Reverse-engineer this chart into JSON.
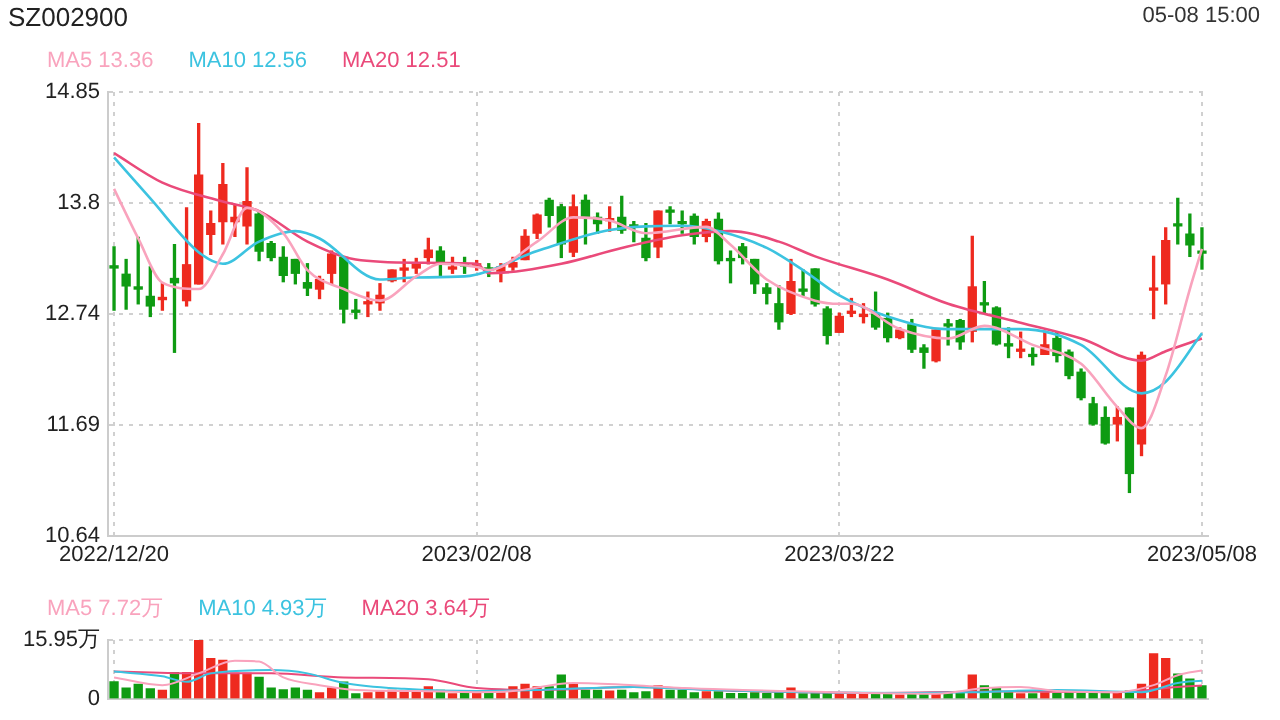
{
  "chart_data": [
    {
      "type": "candlestick",
      "title": "SZ002900",
      "annotations": [
        "05-08 15:00"
      ],
      "categories": [
        "2022/12/20",
        null,
        null,
        null,
        null,
        null,
        null,
        null,
        null,
        null,
        null,
        null,
        null,
        null,
        null,
        null,
        null,
        null,
        null,
        null,
        null,
        null,
        null,
        null,
        null,
        null,
        null,
        null,
        null,
        null,
        "2023/02/08",
        null,
        null,
        null,
        null,
        null,
        null,
        null,
        null,
        null,
        null,
        null,
        null,
        null,
        null,
        null,
        null,
        null,
        null,
        null,
        null,
        null,
        null,
        null,
        null,
        null,
        null,
        null,
        null,
        null,
        "2023/03/22",
        null,
        null,
        null,
        null,
        null,
        null,
        null,
        null,
        null,
        null,
        null,
        null,
        null,
        null,
        null,
        null,
        null,
        null,
        null,
        null,
        null,
        null,
        null,
        null,
        null,
        null,
        null,
        null,
        null,
        "2023/05/08"
      ],
      "ohlc": [
        [
          13.2,
          13.38,
          12.78,
          13.18
        ],
        [
          13.12,
          13.26,
          12.79,
          13.01
        ],
        [
          13.0,
          13.47,
          12.84,
          12.98
        ],
        [
          12.91,
          13.19,
          12.72,
          12.82
        ],
        [
          12.88,
          13.03,
          12.78,
          12.9
        ],
        [
          13.08,
          13.4,
          12.38,
          13.04
        ],
        [
          12.87,
          13.75,
          12.82,
          13.21
        ],
        [
          13.03,
          14.55,
          13.03,
          14.06
        ],
        [
          13.5,
          13.72,
          13.31,
          13.6
        ],
        [
          13.62,
          14.17,
          13.41,
          13.97
        ],
        [
          13.62,
          13.78,
          13.48,
          13.66
        ],
        [
          13.58,
          14.13,
          13.41,
          13.81
        ],
        [
          13.69,
          13.72,
          13.25,
          13.34
        ],
        [
          13.41,
          13.43,
          13.25,
          13.28
        ],
        [
          13.28,
          13.38,
          13.05,
          13.11
        ],
        [
          13.26,
          13.26,
          13.03,
          13.13
        ],
        [
          13.04,
          13.22,
          12.92,
          12.99
        ],
        [
          12.98,
          13.1,
          12.89,
          13.07
        ],
        [
          13.13,
          13.34,
          13.03,
          13.31
        ],
        [
          13.28,
          13.28,
          12.66,
          12.79
        ],
        [
          12.77,
          12.88,
          12.7,
          12.76
        ],
        [
          12.84,
          12.95,
          12.72,
          12.85
        ],
        [
          12.85,
          13.03,
          12.78,
          12.92
        ],
        [
          13.06,
          13.16,
          13.05,
          13.16
        ],
        [
          13.16,
          13.26,
          13.05,
          13.17
        ],
        [
          13.18,
          13.27,
          13.13,
          13.23
        ],
        [
          13.28,
          13.46,
          13.22,
          13.35
        ],
        [
          13.34,
          13.38,
          13.11,
          13.22
        ],
        [
          13.17,
          13.28,
          13.13,
          13.18
        ],
        [
          13.21,
          13.28,
          13.13,
          13.2
        ],
        [
          13.2,
          13.25,
          13.16,
          13.21
        ],
        [
          13.18,
          13.22,
          13.1,
          13.16
        ],
        [
          13.15,
          13.22,
          13.05,
          13.19
        ],
        [
          13.19,
          13.28,
          13.16,
          13.23
        ],
        [
          13.26,
          13.54,
          13.26,
          13.48
        ],
        [
          13.51,
          13.69,
          13.46,
          13.68
        ],
        [
          13.82,
          13.84,
          13.57,
          13.68
        ],
        [
          13.76,
          13.78,
          13.28,
          13.41
        ],
        [
          13.33,
          13.87,
          13.29,
          13.76
        ],
        [
          13.82,
          13.87,
          13.41,
          13.66
        ],
        [
          13.66,
          13.7,
          13.51,
          13.6
        ],
        [
          13.63,
          13.76,
          13.53,
          13.64
        ],
        [
          13.66,
          13.86,
          13.51,
          13.54
        ],
        [
          13.58,
          13.62,
          13.43,
          13.57
        ],
        [
          13.46,
          13.6,
          13.25,
          13.28
        ],
        [
          13.38,
          13.72,
          13.28,
          13.72
        ],
        [
          13.72,
          13.76,
          13.6,
          13.71
        ],
        [
          13.61,
          13.72,
          13.51,
          13.6
        ],
        [
          13.67,
          13.69,
          13.41,
          13.48
        ],
        [
          13.48,
          13.64,
          13.43,
          13.62
        ],
        [
          13.64,
          13.7,
          13.22,
          13.25
        ],
        [
          13.26,
          13.34,
          13.04,
          13.25
        ],
        [
          13.38,
          13.41,
          13.22,
          13.28
        ],
        [
          13.26,
          13.26,
          12.94,
          13.03
        ],
        [
          12.99,
          13.03,
          12.84,
          12.94
        ],
        [
          12.84,
          13.01,
          12.6,
          12.67
        ],
        [
          12.75,
          13.26,
          12.74,
          13.05
        ],
        [
          12.97,
          13.16,
          12.92,
          12.96
        ],
        [
          13.17,
          13.17,
          12.82,
          12.84
        ],
        [
          12.79,
          12.81,
          12.46,
          12.54
        ],
        [
          12.57,
          12.75,
          12.57,
          12.72
        ],
        [
          12.75,
          12.89,
          12.72,
          12.76
        ],
        [
          12.72,
          12.84,
          12.66,
          12.73
        ],
        [
          12.74,
          12.95,
          12.6,
          12.62
        ],
        [
          12.7,
          12.75,
          12.48,
          12.52
        ],
        [
          12.52,
          12.61,
          12.51,
          12.59
        ],
        [
          12.64,
          12.69,
          12.38,
          12.41
        ],
        [
          12.42,
          12.45,
          12.23,
          12.38
        ],
        [
          12.3,
          12.59,
          12.29,
          12.59
        ],
        [
          12.64,
          12.69,
          12.45,
          12.63
        ],
        [
          12.68,
          12.69,
          12.41,
          12.48
        ],
        [
          12.58,
          13.48,
          12.48,
          13.0
        ],
        [
          12.84,
          13.05,
          12.75,
          12.83
        ],
        [
          12.8,
          12.81,
          12.45,
          12.46
        ],
        [
          12.46,
          12.61,
          12.33,
          12.44
        ],
        [
          12.39,
          12.57,
          12.33,
          12.4
        ],
        [
          12.35,
          12.42,
          12.26,
          12.34
        ],
        [
          12.36,
          12.58,
          12.36,
          12.45
        ],
        [
          12.51,
          12.57,
          12.29,
          12.35
        ],
        [
          12.38,
          12.4,
          12.13,
          12.16
        ],
        [
          12.19,
          12.22,
          11.93,
          11.95
        ],
        [
          11.89,
          11.95,
          11.69,
          11.7
        ],
        [
          11.76,
          11.86,
          11.51,
          11.52
        ],
        [
          11.7,
          11.86,
          11.54,
          11.76
        ],
        [
          11.85,
          11.85,
          11.05,
          11.23
        ],
        [
          11.51,
          12.38,
          11.4,
          12.35
        ],
        [
          12.97,
          13.29,
          12.7,
          12.98
        ],
        [
          13.03,
          13.56,
          12.84,
          13.44
        ],
        [
          13.59,
          13.84,
          13.41,
          13.58
        ],
        [
          13.5,
          13.69,
          13.29,
          13.4
        ],
        [
          13.33,
          13.56,
          13.17,
          13.32
        ]
      ],
      "colors": [
        "#0e9b12",
        "#0e9b12",
        "#0e9b12",
        "#0e9b12",
        "#ee2a1f",
        "#0e9b12",
        "#ee2a1f",
        "#ee2a1f",
        "#ee2a1f",
        "#ee2a1f",
        "#ee2a1f",
        "#ee2a1f",
        "#0e9b12",
        "#0e9b12",
        "#0e9b12",
        "#0e9b12",
        "#0e9b12",
        "#ee2a1f",
        "#ee2a1f",
        "#0e9b12",
        "#0e9b12",
        "#ee2a1f",
        "#ee2a1f",
        "#ee2a1f",
        "#ee2a1f",
        "#ee2a1f",
        "#ee2a1f",
        "#0e9b12",
        "#ee2a1f",
        "#0e9b12",
        "#ee2a1f",
        "#0e9b12",
        "#ee2a1f",
        "#ee2a1f",
        "#ee2a1f",
        "#ee2a1f",
        "#0e9b12",
        "#0e9b12",
        "#ee2a1f",
        "#0e9b12",
        "#0e9b12",
        "#ee2a1f",
        "#0e9b12",
        "#0e9b12",
        "#0e9b12",
        "#ee2a1f",
        "#0e9b12",
        "#0e9b12",
        "#0e9b12",
        "#ee2a1f",
        "#0e9b12",
        "#0e9b12",
        "#0e9b12",
        "#0e9b12",
        "#0e9b12",
        "#0e9b12",
        "#ee2a1f",
        "#0e9b12",
        "#0e9b12",
        "#0e9b12",
        "#ee2a1f",
        "#ee2a1f",
        "#ee2a1f",
        "#0e9b12",
        "#0e9b12",
        "#ee2a1f",
        "#0e9b12",
        "#0e9b12",
        "#ee2a1f",
        "#0e9b12",
        "#0e9b12",
        "#ee2a1f",
        "#0e9b12",
        "#0e9b12",
        "#0e9b12",
        "#ee2a1f",
        "#0e9b12",
        "#ee2a1f",
        "#0e9b12",
        "#0e9b12",
        "#0e9b12",
        "#0e9b12",
        "#0e9b12",
        "#ee2a1f",
        "#0e9b12",
        "#ee2a1f",
        "#ee2a1f",
        "#ee2a1f",
        "#0e9b12",
        "#0e9b12",
        "#0e9b12"
      ],
      "series": [
        {
          "type": "line",
          "name": "MA5 13.36",
          "color": "#f9a3bd",
          "values": [
            13.93,
            null,
            13.46,
            null,
            13.04,
            null,
            null,
            12.98,
            null,
            13.31,
            null,
            13.75,
            null,
            null,
            13.51,
            null,
            13.16,
            null,
            null,
            12.98,
            null,
            null,
            12.87,
            null,
            null,
            13.1,
            null,
            13.22,
            null,
            null,
            13.19,
            13.16,
            null,
            null,
            null,
            13.43,
            null,
            null,
            13.66,
            null,
            null,
            13.63,
            null,
            null,
            13.51,
            null,
            null,
            null,
            null,
            13.57,
            null,
            13.4,
            null,
            null,
            13.07,
            null,
            null,
            null,
            12.87,
            null,
            12.84,
            12.84,
            null,
            null,
            null,
            12.6,
            null,
            null,
            null,
            12.51,
            null,
            null,
            12.63,
            null,
            null,
            null,
            12.45,
            null,
            null,
            null,
            12.27,
            null,
            null,
            11.86,
            null,
            11.66,
            null,
            12.16,
            null,
            12.98,
            13.36
          ]
        },
        {
          "type": "line",
          "name": "MA10 12.56",
          "color": "#3cc3e0",
          "values": [
            14.23,
            null,
            null,
            13.84,
            null,
            null,
            null,
            13.33,
            null,
            13.22,
            null,
            null,
            13.43,
            null,
            null,
            13.53,
            null,
            13.46,
            null,
            null,
            null,
            null,
            13.07,
            null,
            null,
            13.09,
            null,
            null,
            null,
            13.1,
            null,
            null,
            null,
            null,
            null,
            13.34,
            null,
            null,
            null,
            null,
            null,
            13.54,
            null,
            null,
            null,
            null,
            null,
            13.58,
            null,
            null,
            13.53,
            null,
            null,
            null,
            13.37,
            null,
            null,
            13.16,
            null,
            null,
            12.92,
            null,
            null,
            null,
            12.72,
            null,
            null,
            null,
            null,
            12.6,
            null,
            null,
            null,
            null,
            null,
            12.6,
            null,
            null,
            null,
            null,
            12.45,
            null,
            null,
            null,
            null,
            11.99,
            null,
            12.1,
            null,
            null,
            12.56
          ]
        },
        {
          "type": "line",
          "name": "MA20 12.51",
          "color": "#ea4a7a",
          "values": [
            14.27,
            null,
            null,
            null,
            13.99,
            null,
            null,
            null,
            null,
            13.81,
            null,
            null,
            13.72,
            null,
            null,
            null,
            13.43,
            null,
            null,
            null,
            13.26,
            null,
            null,
            null,
            null,
            13.23,
            null,
            null,
            null,
            null,
            13.22,
            13.13,
            null,
            null,
            null,
            null,
            null,
            13.22,
            null,
            null,
            null,
            null,
            13.37,
            null,
            null,
            null,
            null,
            13.49,
            null,
            null,
            null,
            13.53,
            null,
            null,
            null,
            13.43,
            null,
            null,
            13.29,
            null,
            null,
            null,
            null,
            null,
            13.07,
            null,
            null,
            null,
            null,
            12.84,
            null,
            null,
            null,
            null,
            null,
            12.66,
            null,
            null,
            null,
            null,
            12.51,
            null,
            null,
            null,
            null,
            12.3,
            null,
            12.39,
            null,
            null,
            12.51
          ]
        }
      ],
      "ylim": [
        10.64,
        14.85
      ],
      "yticks": [
        10.64,
        11.69,
        12.74,
        13.8,
        14.85
      ],
      "grid": true,
      "legend": "top left"
    },
    {
      "type": "bar",
      "categories": [
        "2022/12/20",
        null,
        null,
        null,
        null,
        null,
        null,
        null,
        null,
        null,
        null,
        null,
        null,
        null,
        null,
        null,
        null,
        null,
        null,
        null,
        null,
        null,
        null,
        null,
        null,
        null,
        null,
        null,
        null,
        null,
        "2023/02/08",
        null,
        null,
        null,
        null,
        null,
        null,
        null,
        null,
        null,
        null,
        null,
        null,
        null,
        null,
        null,
        null,
        null,
        null,
        null,
        null,
        null,
        null,
        null,
        null,
        null,
        null,
        null,
        null,
        null,
        "2023/03/22",
        null,
        null,
        null,
        null,
        null,
        null,
        null,
        null,
        null,
        null,
        null,
        null,
        null,
        null,
        null,
        null,
        null,
        null,
        null,
        null,
        null,
        null,
        null,
        null,
        null,
        null,
        null,
        null,
        null,
        "2023/05/08"
      ],
      "values": [
        4.6,
        2.9,
        3.9,
        2.7,
        2.3,
        7.1,
        7.1,
        15.9,
        10.9,
        10.4,
        6.9,
        6.9,
        5.8,
        2.9,
        2.4,
        2.9,
        2.3,
        1.6,
        2.9,
        4.5,
        1.3,
        1.6,
        1.9,
        2.3,
        1.9,
        1.9,
        3.2,
        2.3,
        1.3,
        1.9,
        1.6,
        1.8,
        1.6,
        3.2,
        3.9,
        3.2,
        3.2,
        6.4,
        3.9,
        2.3,
        2.3,
        2.1,
        2.3,
        1.6,
        1.9,
        3.5,
        2.3,
        2.3,
        1.6,
        1.9,
        1.9,
        1.4,
        1.4,
        1.6,
        1.4,
        1.6,
        2.9,
        1.3,
        1.6,
        1.8,
        1.3,
        1.3,
        1.4,
        1.4,
        1.4,
        1.0,
        1.4,
        1.4,
        1.4,
        1.4,
        1.4,
        6.4,
        3.5,
        2.9,
        1.6,
        1.3,
        1.3,
        1.6,
        1.4,
        1.6,
        1.4,
        1.6,
        1.4,
        1.6,
        2.1,
        3.9,
        12.2,
        10.9,
        6.7,
        5.3,
        3.5
      ],
      "colors": [
        "#0e9b12",
        "#0e9b12",
        "#0e9b12",
        "#0e9b12",
        "#ee2a1f",
        "#0e9b12",
        "#ee2a1f",
        "#ee2a1f",
        "#ee2a1f",
        "#ee2a1f",
        "#ee2a1f",
        "#ee2a1f",
        "#0e9b12",
        "#0e9b12",
        "#0e9b12",
        "#0e9b12",
        "#0e9b12",
        "#ee2a1f",
        "#ee2a1f",
        "#0e9b12",
        "#0e9b12",
        "#ee2a1f",
        "#ee2a1f",
        "#ee2a1f",
        "#ee2a1f",
        "#ee2a1f",
        "#ee2a1f",
        "#0e9b12",
        "#ee2a1f",
        "#0e9b12",
        "#ee2a1f",
        "#0e9b12",
        "#ee2a1f",
        "#ee2a1f",
        "#ee2a1f",
        "#ee2a1f",
        "#0e9b12",
        "#0e9b12",
        "#ee2a1f",
        "#0e9b12",
        "#0e9b12",
        "#ee2a1f",
        "#0e9b12",
        "#0e9b12",
        "#0e9b12",
        "#ee2a1f",
        "#0e9b12",
        "#0e9b12",
        "#0e9b12",
        "#ee2a1f",
        "#0e9b12",
        "#0e9b12",
        "#0e9b12",
        "#0e9b12",
        "#0e9b12",
        "#0e9b12",
        "#ee2a1f",
        "#0e9b12",
        "#0e9b12",
        "#0e9b12",
        "#ee2a1f",
        "#ee2a1f",
        "#ee2a1f",
        "#0e9b12",
        "#0e9b12",
        "#ee2a1f",
        "#0e9b12",
        "#0e9b12",
        "#ee2a1f",
        "#0e9b12",
        "#0e9b12",
        "#ee2a1f",
        "#0e9b12",
        "#0e9b12",
        "#0e9b12",
        "#ee2a1f",
        "#0e9b12",
        "#ee2a1f",
        "#0e9b12",
        "#0e9b12",
        "#0e9b12",
        "#0e9b12",
        "#0e9b12",
        "#ee2a1f",
        "#0e9b12",
        "#ee2a1f",
        "#ee2a1f",
        "#ee2a1f",
        "#0e9b12",
        "#0e9b12",
        "#0e9b12"
      ],
      "series": [
        {
          "type": "line",
          "name": "MA5 7.72万",
          "color": "#f9a3bd",
          "values": [
            5.8,
            null,
            null,
            null,
            3.7,
            null,
            null,
            6.9,
            null,
            null,
            10.3,
            null,
            10.1,
            null,
            5.8,
            null,
            null,
            3.7,
            null,
            null,
            2.4,
            null,
            null,
            null,
            null,
            2.1,
            null,
            null,
            null,
            null,
            1.8,
            null,
            null,
            2.1,
            null,
            null,
            null,
            null,
            4.3,
            null,
            null,
            null,
            null,
            3.7,
            null,
            null,
            null,
            2.9,
            null,
            null,
            null,
            null,
            2.4,
            null,
            null,
            null,
            null,
            2.0,
            null,
            null,
            null,
            null,
            1.6,
            null,
            null,
            null,
            null,
            null,
            1.4,
            null,
            null,
            null,
            2.9,
            null,
            null,
            3.2,
            null,
            null,
            2.1,
            null,
            null,
            null,
            null,
            1.8,
            null,
            null,
            3.7,
            null,
            6.4,
            null,
            7.7
          ]
        },
        {
          "type": "line",
          "name": "MA10 4.93万",
          "color": "#3cc3e0",
          "values": [
            7.4,
            null,
            null,
            null,
            6.1,
            null,
            4.6,
            null,
            6.9,
            null,
            null,
            null,
            null,
            7.8,
            null,
            null,
            6.9,
            null,
            null,
            4.3,
            null,
            null,
            null,
            null,
            2.7,
            null,
            null,
            null,
            null,
            null,
            2.1,
            null,
            null,
            null,
            null,
            2.4,
            null,
            null,
            null,
            null,
            null,
            null,
            null,
            3.2,
            null,
            null,
            null,
            null,
            null,
            2.4,
            null,
            null,
            null,
            null,
            null,
            null,
            null,
            1.8,
            null,
            null,
            null,
            null,
            null,
            null,
            null,
            1.6,
            null,
            null,
            null,
            null,
            null,
            1.8,
            null,
            null,
            null,
            null,
            null,
            null,
            2.4,
            null,
            null,
            null,
            null,
            null,
            null,
            1.8,
            null,
            null,
            4.3,
            null,
            4.9
          ]
        },
        {
          "type": "line",
          "name": "MA20 3.64万",
          "color": "#ea4a7a",
          "values": [
            7.4,
            null,
            null,
            null,
            null,
            null,
            null,
            6.9,
            null,
            null,
            null,
            null,
            null,
            6.9,
            null,
            null,
            null,
            null,
            null,
            5.8,
            null,
            null,
            null,
            null,
            null,
            null,
            5.3,
            null,
            null,
            null,
            2.9,
            null,
            null,
            null,
            null,
            2.4,
            null,
            null,
            null,
            null,
            null,
            null,
            null,
            3.2,
            null,
            null,
            null,
            null,
            null,
            null,
            null,
            null,
            2.1,
            null,
            null,
            null,
            null,
            null,
            null,
            null,
            null,
            null,
            1.6,
            null,
            null,
            null,
            null,
            null,
            null,
            null,
            null,
            null,
            null,
            2.0,
            null,
            null,
            null,
            null,
            null,
            null,
            null,
            null,
            null,
            1.8,
            null,
            null,
            null,
            null,
            3.2,
            null,
            3.6
          ]
        }
      ],
      "ylim": [
        0,
        15.95
      ],
      "yticks": [
        0,
        {
          "value": 15.95,
          "label": "15.95万"
        }
      ],
      "tick_labels": "y",
      "grid": true,
      "legend": "top left"
    }
  ]
}
